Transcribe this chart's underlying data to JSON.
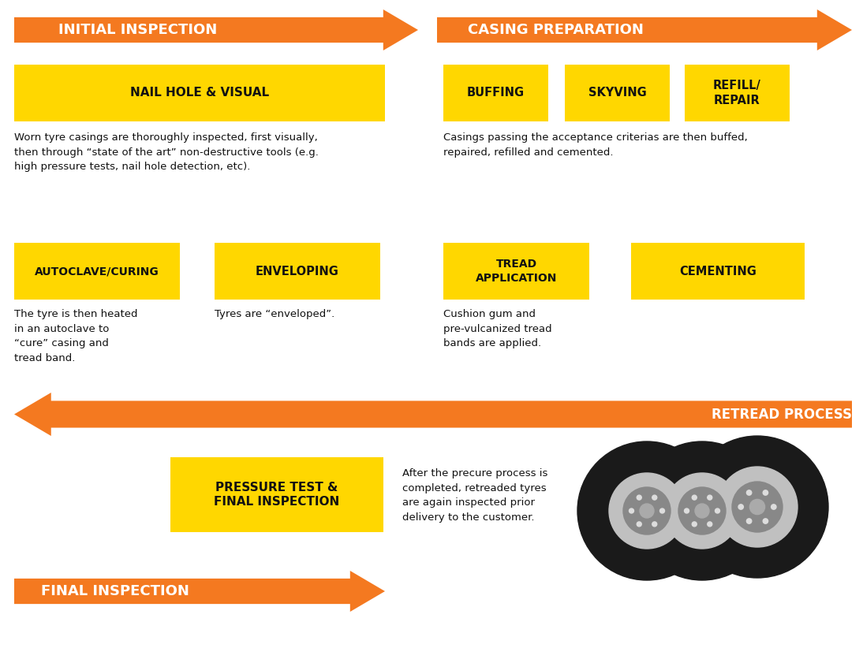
{
  "bg_color": "#ffffff",
  "orange": "#F47920",
  "yellow": "#FFD700",
  "arrow1_label": "INITIAL INSPECTION",
  "arrow2_label": "CASING PREPARATION",
  "arrow3_label": "RETREAD PROCESS",
  "arrow4_label": "FINAL INSPECTION",
  "box1_label": "NAIL HOLE & VISUAL",
  "box2a_label": "BUFFING",
  "box2b_label": "SKYVING",
  "box2c_label": "REFILL/\nREPAIR",
  "box3a_label": "AUTOCLAVE/CURING",
  "box3b_label": "ENVELOPING",
  "box3c_label": "TREAD\nAPPLICATION",
  "box3d_label": "CEMENTING",
  "box4_label": "PRESSURE TEST &\nFINAL INSPECTION",
  "text1": "Worn tyre casings are thoroughly inspected, first visually,\nthen through “state of the art” non-destructive tools (e.g.\nhigh pressure tests, nail hole detection, etc).",
  "text2": "Casings passing the acceptance criterias are then buffed,\nrepaired, refilled and cemented.",
  "text3a": "The tyre is then heated\nin an autoclave to\n“cure” casing and\ntread band.",
  "text3b": "Tyres are “enveloped”.",
  "text3c": "Cushion gum and\npre-vulcanized tread\nbands are applied.",
  "text4": "After the precure process is\ncompleted, retreaded tyres\nare again inspected prior\ndelivery to the customer."
}
